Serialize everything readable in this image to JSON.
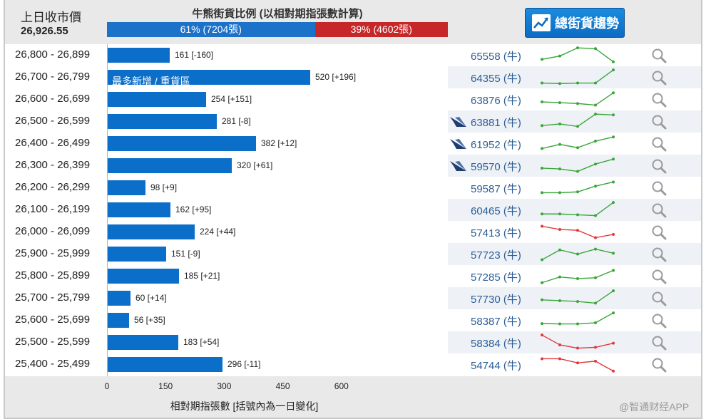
{
  "header": {
    "prev_close_label": "上日收市價",
    "prev_close_value": "26,926.55",
    "ratio_title": "牛熊街貨比例 (以相對期指張數計算)",
    "bull_pct": 61,
    "bull_label": "61% (7204張)",
    "bear_label": "39% (4602張)",
    "trend_button_label": "總街貨趨勢"
  },
  "colors": {
    "bull_bar": "#0b6fca",
    "bear": "#c6282a",
    "spark_up": "#3aa63a",
    "spark_down": "#e0393b",
    "bull_text": "#2d5e97"
  },
  "axis": {
    "max": 700,
    "ticks": [
      "0",
      "150",
      "300",
      "450",
      "600"
    ],
    "tick_values": [
      0,
      150,
      300,
      450,
      600
    ],
    "title": "相對期指張數 [括號內為一日變化]"
  },
  "rows": [
    {
      "range": "26,800 - 26,899",
      "value": 161,
      "label": "161 [-160]",
      "bar_text": "",
      "bull": "65558 (牛)",
      "brand": false,
      "trend": "green",
      "spark": [
        0.25,
        0.45,
        0.95,
        0.9,
        0.1
      ]
    },
    {
      "range": "26,700 - 26,799",
      "value": 520,
      "label": "520 [+196]",
      "bar_text": "最多新增 / 重貨區",
      "bull": "64355 (牛)",
      "brand": false,
      "trend": "green",
      "spark": [
        0.15,
        0.12,
        0.15,
        0.15,
        0.95
      ]
    },
    {
      "range": "26,600 - 26,699",
      "value": 254,
      "label": "254 [+151]",
      "bar_text": "",
      "bull": "63876 (牛)",
      "brand": false,
      "trend": "green",
      "spark": [
        0.35,
        0.3,
        0.25,
        0.15,
        0.9
      ]
    },
    {
      "range": "26,500 - 26,599",
      "value": 281,
      "label": "281 [-8]",
      "bar_text": "",
      "bull": "63881 (牛)",
      "brand": true,
      "trend": "green",
      "spark": [
        0.25,
        0.35,
        0.2,
        0.95,
        0.9
      ]
    },
    {
      "range": "26,400 - 26,499",
      "value": 382,
      "label": "382 [+12]",
      "bar_text": "",
      "bull": "61952 (牛)",
      "brand": true,
      "trend": "green",
      "spark": [
        0.2,
        0.45,
        0.25,
        0.65,
        0.9
      ]
    },
    {
      "range": "26,300 - 26,399",
      "value": 320,
      "label": "320 [+61]",
      "bar_text": "",
      "bull": "59570 (牛)",
      "brand": true,
      "trend": "green",
      "spark": [
        0.35,
        0.3,
        0.15,
        0.6,
        0.9
      ]
    },
    {
      "range": "26,200 - 26,299",
      "value": 98,
      "label": "98 [+9]",
      "bar_text": "",
      "bull": "59587 (牛)",
      "brand": false,
      "trend": "green",
      "spark": [
        0.2,
        0.2,
        0.25,
        0.6,
        0.85
      ]
    },
    {
      "range": "26,100 - 26,199",
      "value": 162,
      "label": "162 [+95]",
      "bar_text": "",
      "bull": "60465 (牛)",
      "brand": false,
      "trend": "green",
      "spark": [
        0.25,
        0.25,
        0.2,
        0.15,
        0.95
      ]
    },
    {
      "range": "26,000 - 26,099",
      "value": 224,
      "label": "224 [+44]",
      "bar_text": "",
      "bull": "57413 (牛)",
      "brand": false,
      "trend": "red",
      "spark": [
        0.85,
        0.65,
        0.6,
        0.15,
        0.35
      ]
    },
    {
      "range": "25,900 - 25,999",
      "value": 151,
      "label": "151 [-9]",
      "bar_text": "",
      "bull": "57723 (牛)",
      "brand": false,
      "trend": "green",
      "spark": [
        0.15,
        0.75,
        0.5,
        0.8,
        0.55
      ]
    },
    {
      "range": "25,800 - 25,899",
      "value": 185,
      "label": "185 [+21]",
      "bar_text": "",
      "bull": "57285 (牛)",
      "brand": false,
      "trend": "green",
      "spark": [
        0.1,
        0.45,
        0.35,
        0.4,
        0.85
      ]
    },
    {
      "range": "25,700 - 25,799",
      "value": 60,
      "label": "60 [+14]",
      "bar_text": "",
      "bull": "57730 (牛)",
      "brand": false,
      "trend": "green",
      "spark": [
        0.4,
        0.35,
        0.3,
        0.2,
        0.95
      ]
    },
    {
      "range": "25,600 - 25,699",
      "value": 56,
      "label": "56 [+35]",
      "bar_text": "",
      "bull": "58387 (牛)",
      "brand": false,
      "trend": "green",
      "spark": [
        0.3,
        0.28,
        0.28,
        0.35,
        0.95
      ]
    },
    {
      "range": "25,500 - 25,599",
      "value": 183,
      "label": "183 [+54]",
      "bar_text": "",
      "bull": "58384 (牛)",
      "brand": false,
      "trend": "red",
      "spark": [
        0.95,
        0.35,
        0.15,
        0.2,
        0.45
      ]
    },
    {
      "range": "25,400 - 25,499",
      "value": 296,
      "label": "296 [-11]",
      "bar_text": "",
      "bull": "54744 (牛)",
      "brand": false,
      "trend": "red",
      "spark": [
        0.85,
        0.85,
        0.6,
        0.7,
        0.1
      ]
    }
  ],
  "watermark": "@智通财经APP"
}
